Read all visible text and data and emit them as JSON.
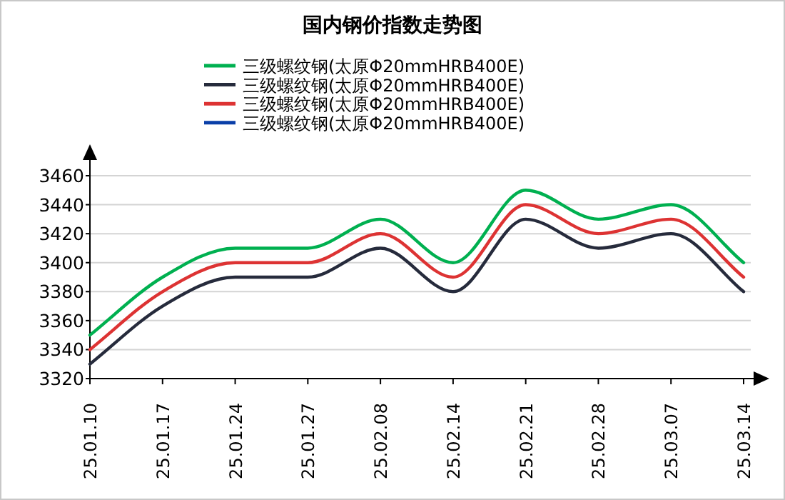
{
  "chart_data": {
    "type": "line",
    "title": "国内钢价指数走势图",
    "categories": [
      "25.01.10",
      "25.01.17",
      "25.01.24",
      "25.01.27",
      "25.02.08",
      "25.02.14",
      "25.02.21",
      "25.02.28",
      "25.03.07",
      "25.03.14"
    ],
    "series": [
      {
        "name": "三级螺纹钢(太原Φ20mmHRB400E)",
        "color": "#00b050",
        "values": [
          3350,
          3390,
          3410,
          3410,
          3430,
          3400,
          3450,
          3430,
          3440,
          3400
        ]
      },
      {
        "name": "三级螺纹钢(太原Φ20mmHRB400E)",
        "color": "#262b3c",
        "values": [
          3330,
          3370,
          3390,
          3390,
          3410,
          3380,
          3430,
          3410,
          3420,
          3380
        ]
      },
      {
        "name": "三级螺纹钢(太原Φ20mmHRB400E)",
        "color": "#dd3333",
        "values": [
          3340,
          3380,
          3400,
          3400,
          3420,
          3390,
          3440,
          3420,
          3430,
          3390
        ]
      },
      {
        "name": "三级螺纹钢(太原Φ20mmHRB400E)",
        "color": "#0a3fa8",
        "values": [
          null,
          null,
          null,
          null,
          null,
          null,
          null,
          null,
          null,
          null
        ]
      }
    ],
    "ylim": [
      3320,
      3460
    ],
    "yticks": [
      3320,
      3340,
      3360,
      3380,
      3400,
      3420,
      3440,
      3460
    ],
    "grid": "y",
    "legend": "top"
  }
}
